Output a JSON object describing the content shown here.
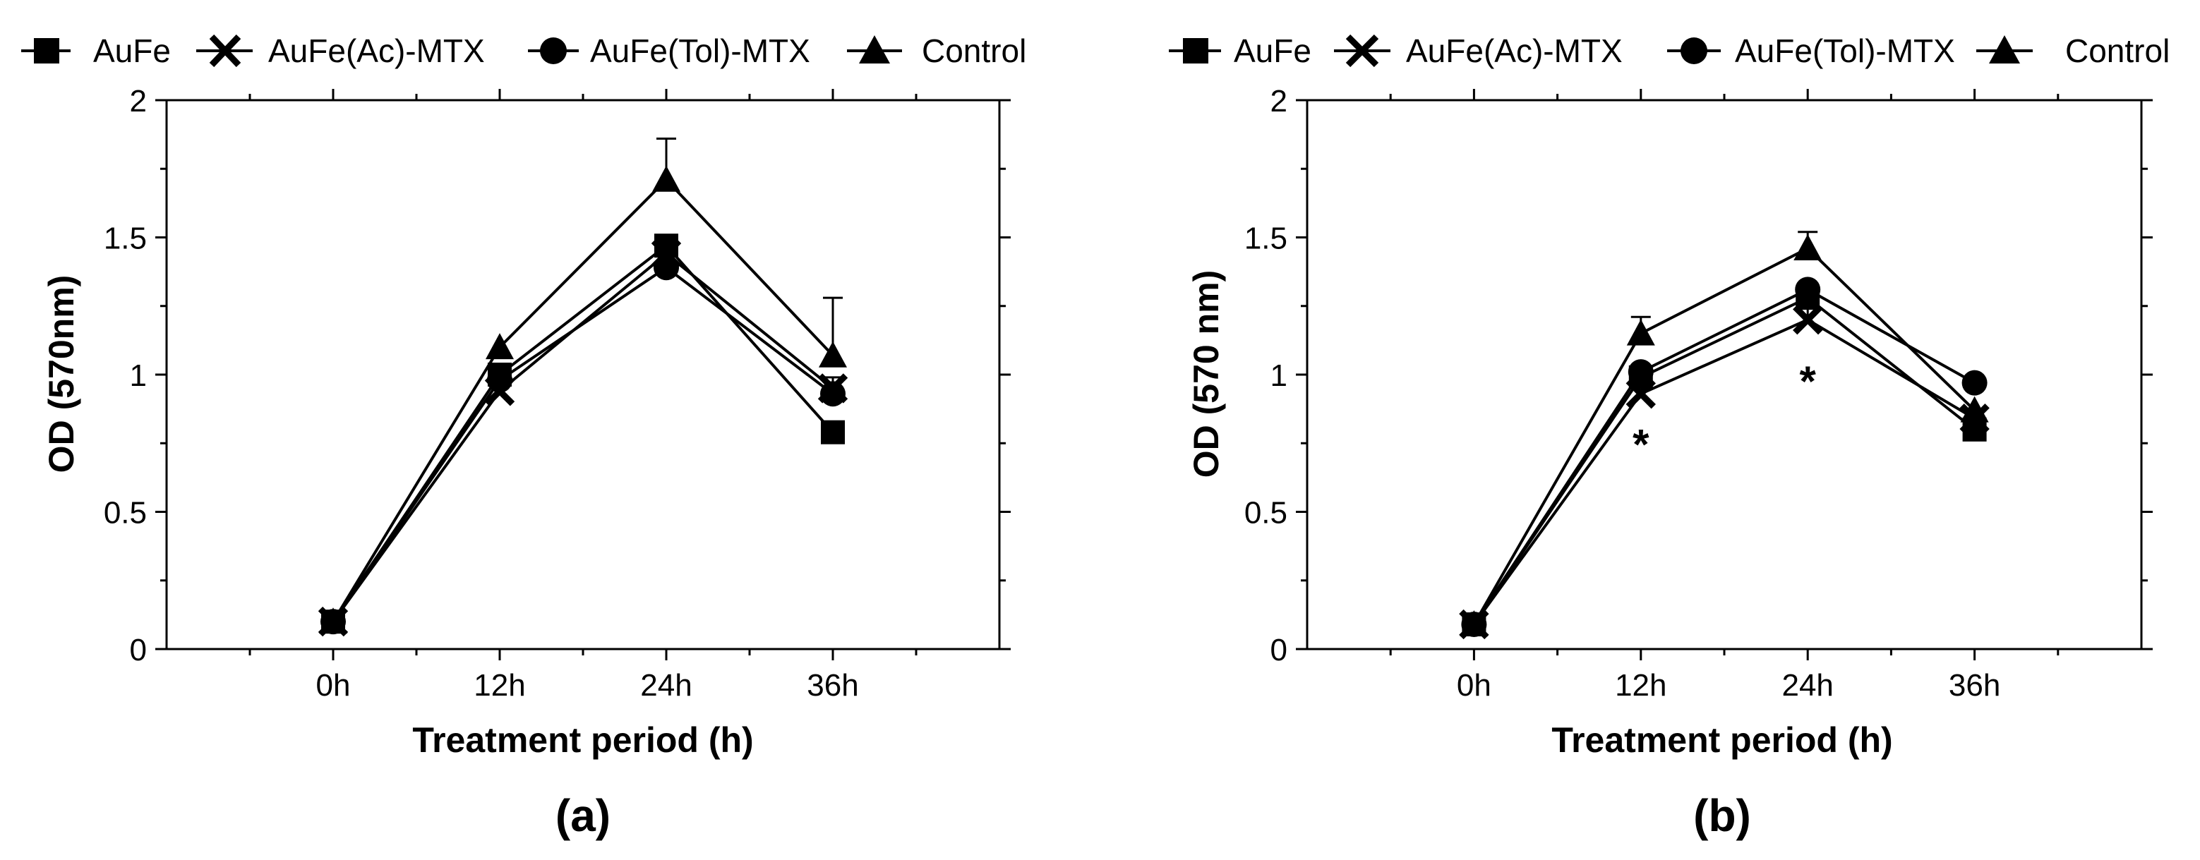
{
  "chart_data": [
    {
      "type": "line",
      "panel_label": "(a)",
      "title": "",
      "xlabel": "Treatment period (h)",
      "ylabel": "OD (570nm)",
      "categories": [
        "0h",
        "12h",
        "24h",
        "36h"
      ],
      "ylim": [
        0,
        2
      ],
      "yticks": [
        "0",
        "0.5",
        "1",
        "1.5",
        "2"
      ],
      "grid": false,
      "legend_position": "top",
      "series": [
        {
          "name": "AuFe",
          "marker": "square",
          "values": [
            0.1,
            1.0,
            1.47,
            0.79
          ],
          "err": [
            0,
            0,
            0,
            0
          ]
        },
        {
          "name": "AuFe(Ac)-MTX",
          "marker": "x",
          "values": [
            0.1,
            0.94,
            1.44,
            0.95
          ],
          "err": [
            0,
            0,
            0,
            0
          ]
        },
        {
          "name": "AuFe(Tol)-MTX",
          "marker": "circle",
          "values": [
            0.1,
            0.98,
            1.39,
            0.93
          ],
          "err": [
            0,
            0,
            0,
            0.06
          ]
        },
        {
          "name": "Control",
          "marker": "triangle",
          "values": [
            0.1,
            1.1,
            1.71,
            1.07
          ],
          "err": [
            0,
            0,
            0.15,
            0.21
          ]
        }
      ],
      "annotations": []
    },
    {
      "type": "line",
      "panel_label": "(b)",
      "title": "",
      "xlabel": "Treatment period (h)",
      "ylabel": "OD (570 nm)",
      "categories": [
        "0h",
        "12h",
        "24h",
        "36h"
      ],
      "ylim": [
        0,
        2
      ],
      "yticks": [
        "0",
        "0.5",
        "1",
        "1.5",
        "2"
      ],
      "grid": false,
      "legend_position": "top",
      "series": [
        {
          "name": "AuFe",
          "marker": "square",
          "values": [
            0.09,
            0.99,
            1.28,
            0.8
          ],
          "err": [
            0,
            0,
            0,
            0
          ]
        },
        {
          "name": "AuFe(Ac)-MTX",
          "marker": "x",
          "values": [
            0.09,
            0.93,
            1.2,
            0.84
          ],
          "err": [
            0,
            0,
            0.09,
            0
          ]
        },
        {
          "name": "AuFe(Tol)-MTX",
          "marker": "circle",
          "values": [
            0.09,
            1.01,
            1.31,
            0.97
          ],
          "err": [
            0,
            0,
            0,
            0
          ]
        },
        {
          "name": "Control",
          "marker": "triangle",
          "values": [
            0.09,
            1.15,
            1.46,
            0.87
          ],
          "err": [
            0,
            0.06,
            0.06,
            0
          ]
        }
      ],
      "annotations": [
        {
          "text": "*",
          "category": "12h",
          "y": 0.75
        },
        {
          "text": "*",
          "category": "24h",
          "y": 0.98
        }
      ]
    }
  ]
}
